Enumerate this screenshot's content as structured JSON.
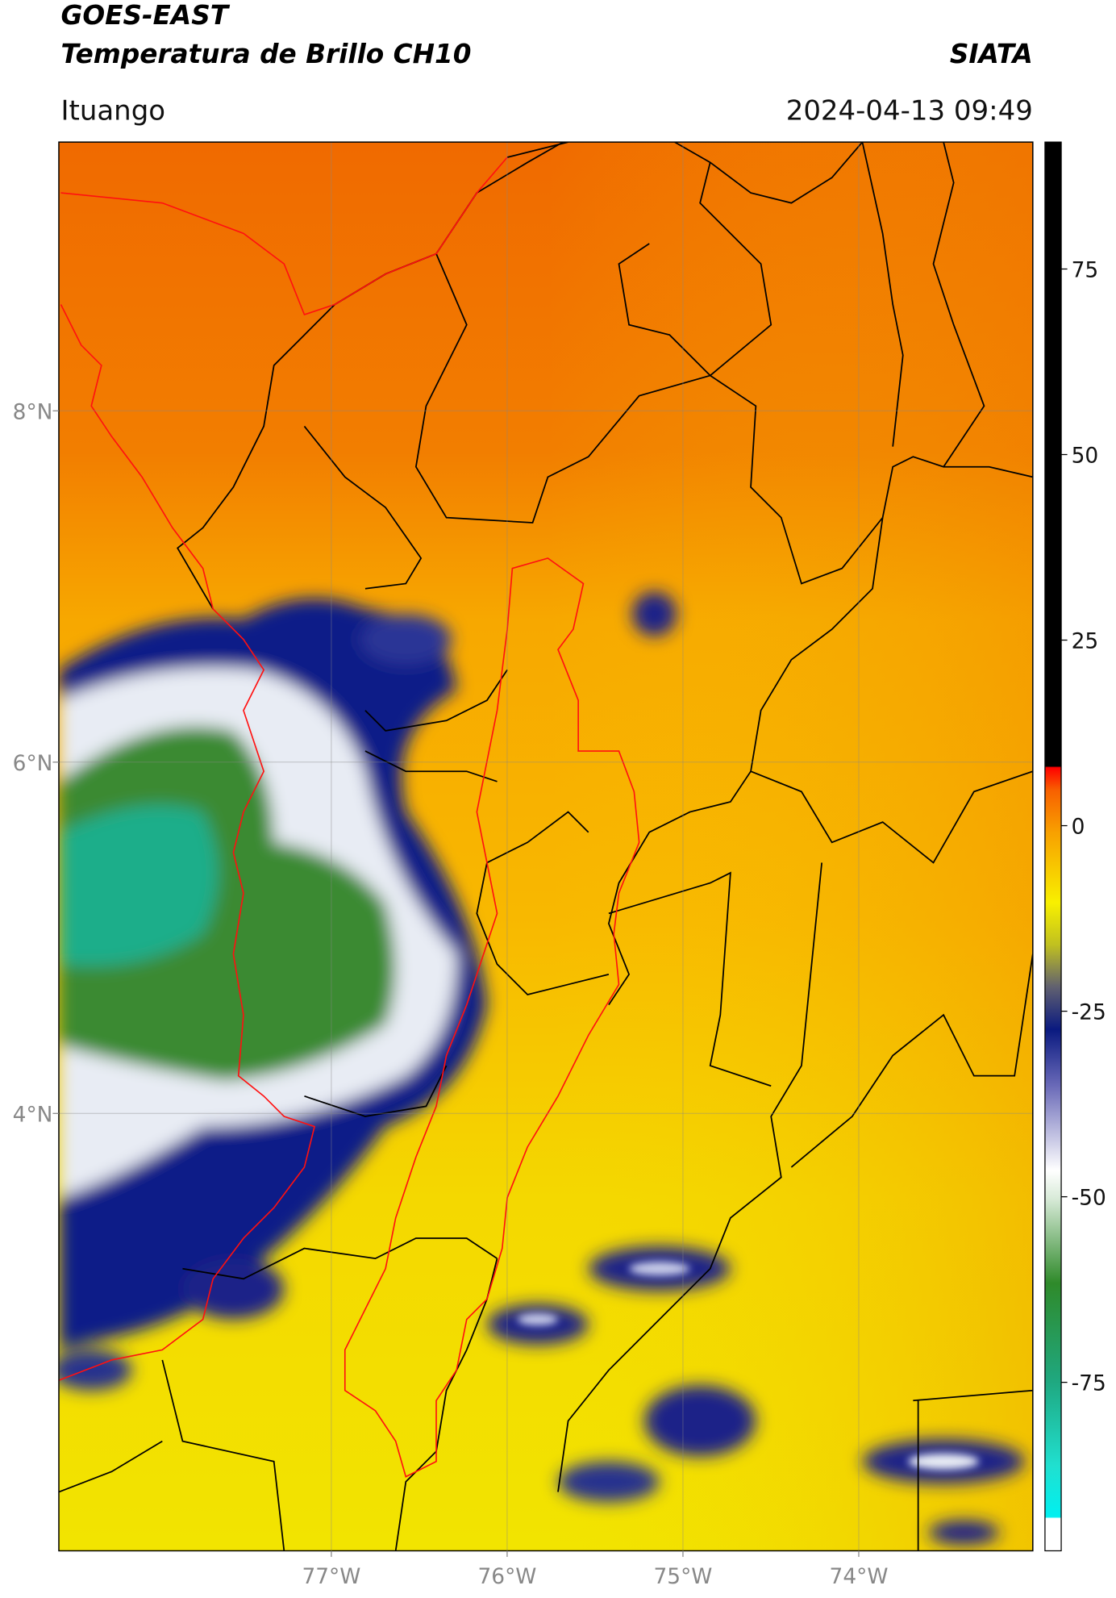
{
  "header": {
    "title": "GOES-EAST",
    "subtitle": "Temperatura de Brillo CH10",
    "source": "SIATA",
    "location": "Ituango",
    "datetime": "2024-04-13 09:49"
  },
  "map": {
    "lonlim": [
      -78.55,
      -73.01
    ],
    "latlim": [
      1.51,
      9.53
    ],
    "lonticks": [
      {
        "value": -77,
        "label": "77°W"
      },
      {
        "value": -76,
        "label": "76°W"
      },
      {
        "value": -75,
        "label": "75°W"
      },
      {
        "value": -74,
        "label": "74°W"
      }
    ],
    "latticks": [
      {
        "value": 8,
        "label": "8°N"
      },
      {
        "value": 6,
        "label": "6°N"
      },
      {
        "value": 4,
        "label": "4°N"
      }
    ],
    "grid": true
  },
  "colorbar": {
    "lim": [
      -97.7,
      92.1
    ],
    "ticks": [
      75,
      50,
      25,
      0,
      -25,
      -50,
      -75
    ]
  }
}
